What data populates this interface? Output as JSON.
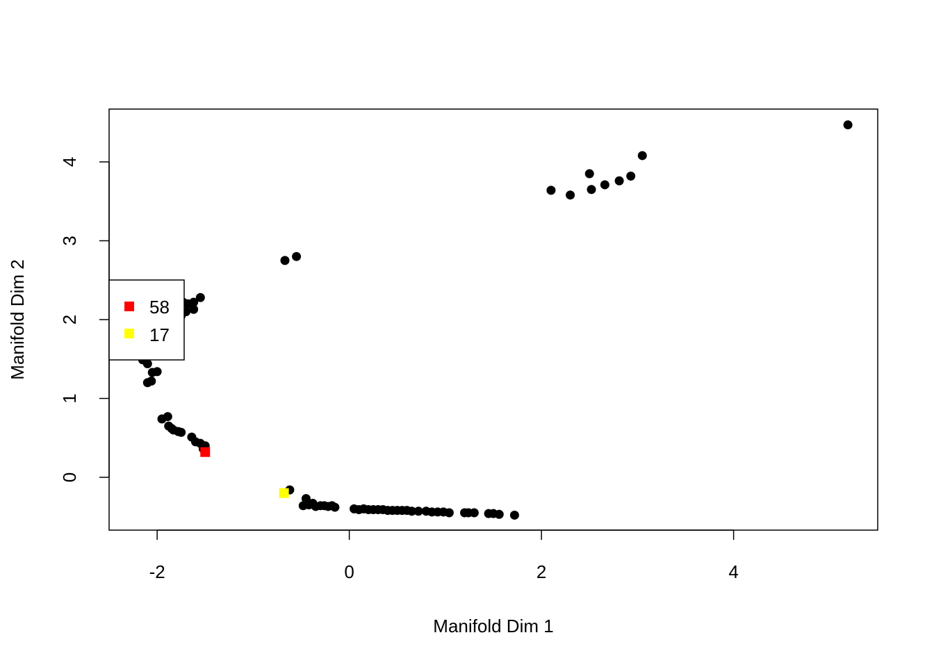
{
  "chart_data": {
    "type": "scatter",
    "title": "",
    "xlabel": "Manifold Dim 1",
    "ylabel": "Manifold Dim 2",
    "xlim": [
      -2.5,
      5.5
    ],
    "ylim": [
      -0.67,
      4.67
    ],
    "x_ticks": [
      "-2",
      "0",
      "2",
      "4"
    ],
    "y_ticks": [
      "0",
      "1",
      "2",
      "3",
      "4"
    ],
    "grid": false,
    "legend_position": "left",
    "colors": {
      "points": "#000000",
      "highlight_58": "#ff0000",
      "highlight_17": "#ffff00"
    },
    "legend": [
      {
        "label": "58",
        "color": "#ff0000"
      },
      {
        "label": "17",
        "color": "#ffff00"
      }
    ],
    "series": [
      {
        "marker": "circle",
        "color": "#000000",
        "points": [
          [
            5.19,
            4.47
          ],
          [
            3.05,
            4.08
          ],
          [
            2.93,
            3.82
          ],
          [
            2.81,
            3.76
          ],
          [
            2.66,
            3.71
          ],
          [
            2.52,
            3.65
          ],
          [
            2.5,
            3.85
          ],
          [
            2.3,
            3.58
          ],
          [
            2.1,
            3.64
          ],
          [
            -0.67,
            2.75
          ],
          [
            -0.55,
            2.8
          ],
          [
            -1.55,
            2.28
          ],
          [
            -1.62,
            2.22
          ],
          [
            -1.68,
            2.2
          ],
          [
            -1.62,
            2.13
          ],
          [
            -1.7,
            2.1
          ],
          [
            -1.75,
            2.05
          ],
          [
            -1.78,
            2.0
          ],
          [
            -1.73,
            2.22
          ],
          [
            -2.05,
            1.33
          ],
          [
            -2.0,
            1.34
          ],
          [
            -2.1,
            1.44
          ],
          [
            -2.15,
            1.49
          ],
          [
            -2.1,
            1.2
          ],
          [
            -2.06,
            1.22
          ],
          [
            -1.95,
            0.74
          ],
          [
            -1.89,
            0.77
          ],
          [
            -1.88,
            0.65
          ],
          [
            -1.85,
            0.62
          ],
          [
            -1.83,
            0.6
          ],
          [
            -1.78,
            0.58
          ],
          [
            -1.75,
            0.57
          ],
          [
            -1.64,
            0.51
          ],
          [
            -1.6,
            0.45
          ],
          [
            -1.55,
            0.43
          ],
          [
            -1.5,
            0.4
          ],
          [
            -1.52,
            0.36
          ],
          [
            -0.62,
            -0.16
          ],
          [
            -0.45,
            -0.27
          ],
          [
            -0.48,
            -0.36
          ],
          [
            -0.42,
            -0.35
          ],
          [
            -0.38,
            -0.33
          ],
          [
            -0.35,
            -0.37
          ],
          [
            -0.3,
            -0.36
          ],
          [
            -0.26,
            -0.36
          ],
          [
            -0.22,
            -0.37
          ],
          [
            -0.18,
            -0.36
          ],
          [
            -0.15,
            -0.38
          ],
          [
            0.05,
            -0.4
          ],
          [
            0.1,
            -0.41
          ],
          [
            0.15,
            -0.4
          ],
          [
            0.2,
            -0.41
          ],
          [
            0.25,
            -0.41
          ],
          [
            0.3,
            -0.41
          ],
          [
            0.35,
            -0.41
          ],
          [
            0.4,
            -0.42
          ],
          [
            0.45,
            -0.42
          ],
          [
            0.5,
            -0.42
          ],
          [
            0.55,
            -0.42
          ],
          [
            0.6,
            -0.42
          ],
          [
            0.65,
            -0.43
          ],
          [
            0.72,
            -0.43
          ],
          [
            0.8,
            -0.43
          ],
          [
            0.86,
            -0.44
          ],
          [
            0.92,
            -0.44
          ],
          [
            0.98,
            -0.44
          ],
          [
            1.04,
            -0.45
          ],
          [
            1.2,
            -0.45
          ],
          [
            1.24,
            -0.45
          ],
          [
            1.3,
            -0.45
          ],
          [
            1.45,
            -0.46
          ],
          [
            1.5,
            -0.46
          ],
          [
            1.56,
            -0.47
          ],
          [
            1.72,
            -0.48
          ]
        ]
      },
      {
        "name": "58",
        "marker": "square",
        "color": "#ff0000",
        "points": [
          [
            -1.5,
            0.32
          ]
        ]
      },
      {
        "name": "17",
        "marker": "square",
        "color": "#ffff00",
        "points": [
          [
            -0.68,
            -0.2
          ]
        ]
      }
    ]
  }
}
